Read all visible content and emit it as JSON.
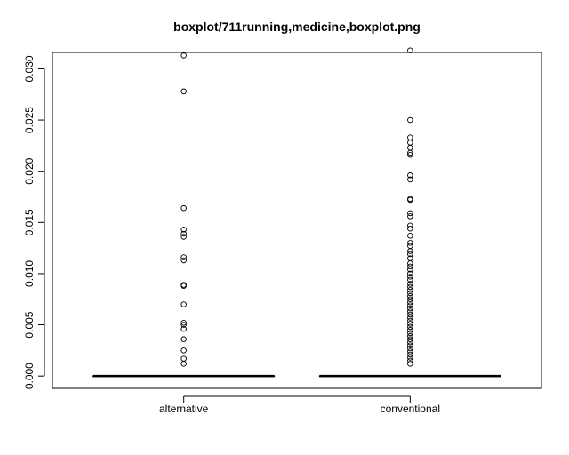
{
  "chart_data": {
    "type": "boxplot",
    "title": "boxplot/711running,medicine,boxplot.png",
    "xlabel": "",
    "ylabel": "",
    "ylim": [
      -0.0012,
      0.0316
    ],
    "yticks": [
      0.0,
      0.005,
      0.01,
      0.015,
      0.02,
      0.025,
      0.03
    ],
    "ytick_labels": [
      "0.000",
      "0.005",
      "0.010",
      "0.015",
      "0.020",
      "0.025",
      "0.030"
    ],
    "grid": false,
    "categories": [
      "alternative",
      "conventional"
    ],
    "boxes": [
      {
        "name": "alternative",
        "q1": 0,
        "median": 0,
        "q3": 0,
        "whisker_low": 0,
        "whisker_high": 0,
        "outliers": [
          0.0313,
          0.0278,
          0.0164,
          0.0143,
          0.0139,
          0.0136,
          0.0116,
          0.0113,
          0.0089,
          0.0088,
          0.007,
          0.0052,
          0.005,
          0.0046,
          0.0036,
          0.0025,
          0.0017,
          0.0012
        ]
      },
      {
        "name": "conventional",
        "q1": 0,
        "median": 0,
        "q3": 0,
        "whisker_low": 0,
        "whisker_high": 0,
        "outliers": [
          0.0318,
          0.025,
          0.0233,
          0.0228,
          0.0223,
          0.0218,
          0.0216,
          0.0196,
          0.0192,
          0.0173,
          0.0172,
          0.0159,
          0.0156,
          0.0147,
          0.0144,
          0.0137,
          0.013,
          0.0127,
          0.0122,
          0.0119,
          0.0115,
          0.011,
          0.0107,
          0.0104,
          0.01,
          0.0097,
          0.0094,
          0.009,
          0.0087,
          0.0084,
          0.0081,
          0.0078,
          0.0075,
          0.0072,
          0.0069,
          0.0066,
          0.0063,
          0.006,
          0.0057,
          0.0054,
          0.0051,
          0.0048,
          0.0045,
          0.0042,
          0.0039,
          0.0036,
          0.0033,
          0.003,
          0.0027,
          0.0024,
          0.0021,
          0.0018,
          0.0015,
          0.0012
        ]
      }
    ]
  }
}
